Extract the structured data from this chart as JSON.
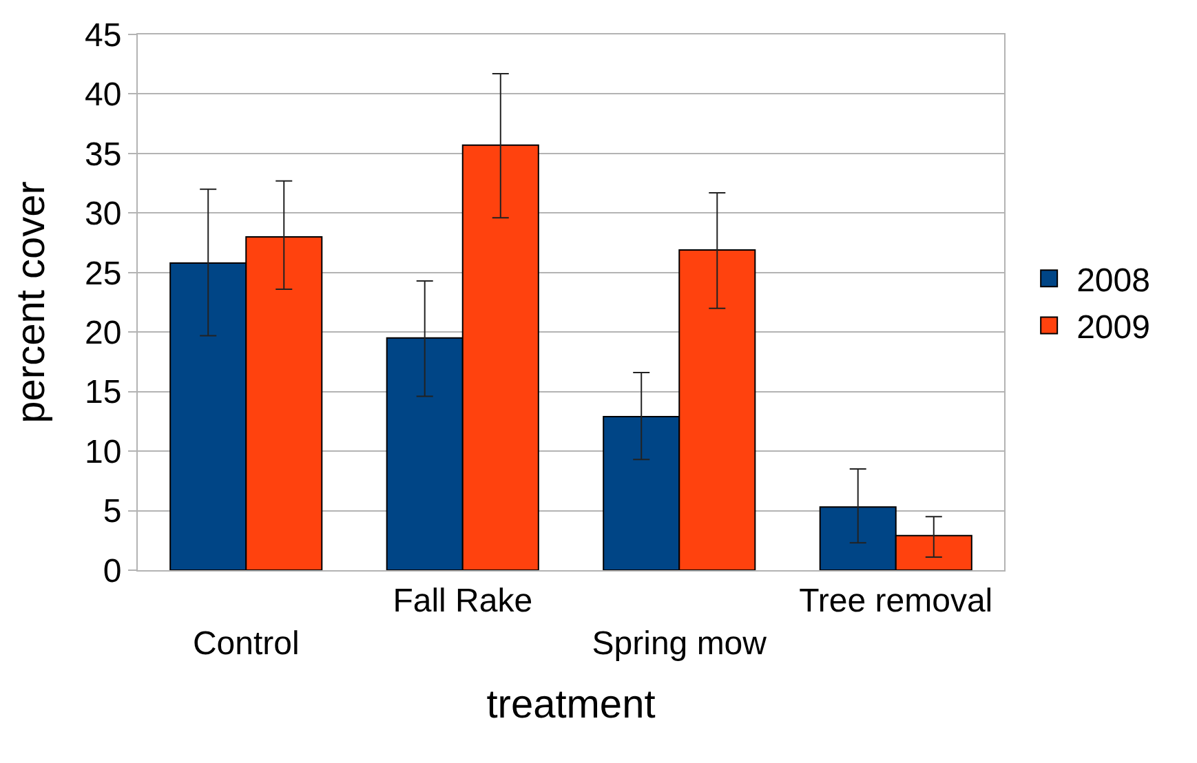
{
  "chart_data": {
    "type": "bar",
    "xlabel": "treatment",
    "ylabel": "percent cover",
    "categories": [
      "Control",
      "Fall Rake",
      "Spring mow",
      "Tree removal"
    ],
    "series": [
      {
        "name": "2008",
        "color": "#004586",
        "values": [
          25.8,
          19.5,
          12.9,
          5.3
        ],
        "errors": [
          [
            19.7,
            32.0
          ],
          [
            14.6,
            24.3
          ],
          [
            9.3,
            16.6
          ],
          [
            2.3,
            8.5
          ]
        ]
      },
      {
        "name": "2009",
        "color": "#ff420e",
        "values": [
          28.0,
          35.7,
          26.9,
          2.9
        ],
        "errors": [
          [
            23.6,
            32.7
          ],
          [
            29.6,
            41.7
          ],
          [
            22.0,
            31.7
          ],
          [
            1.1,
            4.5
          ]
        ]
      }
    ],
    "ylim": [
      0,
      45
    ],
    "yticks": [
      0,
      5,
      10,
      15,
      20,
      25,
      30,
      35,
      40,
      45
    ],
    "grid": "y",
    "legend": "right"
  }
}
